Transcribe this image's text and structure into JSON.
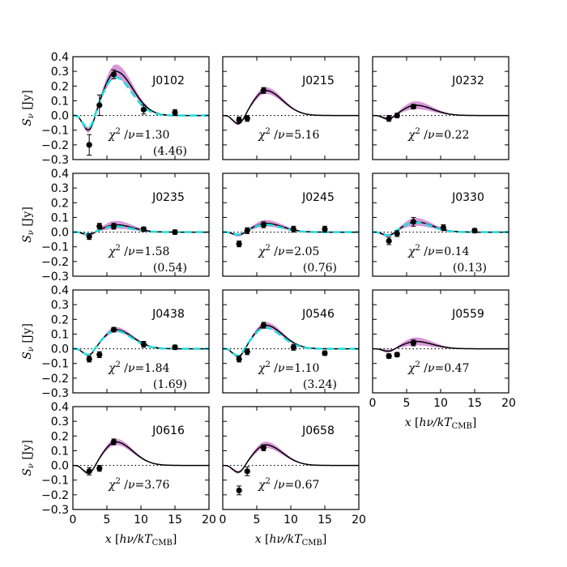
{
  "chart_data": {
    "type": "line",
    "description_axes": {
      "ylabel": "S_ν [Jy]",
      "xlabel": "x [hν/kT_CMB]",
      "xlim": [
        0,
        20
      ],
      "ylim": [
        -0.3,
        0.4
      ],
      "xticks": [
        0,
        5,
        10,
        15,
        20
      ],
      "xtick_labels": [
        "0",
        "5",
        "10",
        "15",
        "20"
      ],
      "yticks": [
        -0.3,
        -0.2,
        -0.1,
        0.0,
        0.1,
        0.2,
        0.3,
        0.4
      ],
      "ytick_labels": [
        "−0.3",
        "−0.2",
        "−0.1",
        "0.0",
        "0.1",
        "0.2",
        "0.3",
        "0.4"
      ]
    },
    "colors": {
      "model_line": "#000000",
      "band": "#cc77cc",
      "alt_model": "#22dddd",
      "points": "#000000"
    },
    "panels": [
      {
        "name": "J0102",
        "row": 0,
        "col": 0,
        "chi2": "1.30",
        "alt_chi2": "(4.46)",
        "points": [
          [
            2.4,
            -0.2,
            0.07
          ],
          [
            3.9,
            0.07,
            0.07
          ],
          [
            6.0,
            0.28,
            0.03
          ],
          [
            10.4,
            0.04,
            0.03
          ],
          [
            15.0,
            0.02,
            0.02
          ]
        ],
        "amp": 0.3,
        "band_frac": 0.15,
        "alt_scale": 0.87,
        "show_alt": true,
        "show_yticks": true,
        "show_xticks": false
      },
      {
        "name": "J0215",
        "row": 0,
        "col": 1,
        "chi2": "5.16",
        "alt_chi2": "",
        "points": [
          [
            2.4,
            -0.03,
            0.02
          ],
          [
            3.6,
            -0.02,
            0.02
          ],
          [
            6.0,
            0.17,
            0.02
          ]
        ],
        "amp": 0.17,
        "band_frac": 0.12,
        "alt_scale": 1.0,
        "show_alt": false,
        "show_yticks": false,
        "show_xticks": false
      },
      {
        "name": "J0232",
        "row": 0,
        "col": 2,
        "chi2": "0.22",
        "alt_chi2": "",
        "points": [
          [
            2.4,
            -0.02,
            0.02
          ],
          [
            3.6,
            0.0,
            0.015
          ],
          [
            6.0,
            0.06,
            0.015
          ]
        ],
        "amp": 0.07,
        "band_frac": 0.35,
        "alt_scale": 1.0,
        "show_alt": false,
        "show_yticks": false,
        "show_xticks": false
      },
      {
        "name": "J0235",
        "row": 1,
        "col": 0,
        "chi2": "1.58",
        "alt_chi2": "(0.54)",
        "points": [
          [
            2.4,
            -0.03,
            0.02
          ],
          [
            3.9,
            0.04,
            0.02
          ],
          [
            6.0,
            0.04,
            0.02
          ],
          [
            10.4,
            0.02,
            0.015
          ],
          [
            15.0,
            0.0,
            0.015
          ]
        ],
        "amp": 0.05,
        "band_frac": 0.5,
        "alt_scale": 0.8,
        "show_alt": true,
        "show_yticks": true,
        "show_xticks": false
      },
      {
        "name": "J0245",
        "row": 1,
        "col": 1,
        "chi2": "2.05",
        "alt_chi2": "(0.76)",
        "points": [
          [
            2.4,
            -0.08,
            0.02
          ],
          [
            3.6,
            0.01,
            0.02
          ],
          [
            6.0,
            0.05,
            0.02
          ],
          [
            10.4,
            0.02,
            0.02
          ],
          [
            15.0,
            0.02,
            0.02
          ]
        ],
        "amp": 0.06,
        "band_frac": 0.35,
        "alt_scale": 0.85,
        "show_alt": true,
        "show_yticks": false,
        "show_xticks": false
      },
      {
        "name": "J0330",
        "row": 1,
        "col": 2,
        "chi2": "0.14",
        "alt_chi2": "(0.13)",
        "points": [
          [
            2.4,
            -0.06,
            0.025
          ],
          [
            3.6,
            -0.01,
            0.02
          ],
          [
            6.0,
            0.07,
            0.03
          ],
          [
            10.4,
            0.03,
            0.02
          ],
          [
            15.0,
            0.01,
            0.015
          ]
        ],
        "amp": 0.07,
        "band_frac": 0.35,
        "alt_scale": 0.95,
        "show_alt": true,
        "show_yticks": false,
        "show_xticks": false
      },
      {
        "name": "J0438",
        "row": 2,
        "col": 0,
        "chi2": "1.84",
        "alt_chi2": "(1.69)",
        "points": [
          [
            2.4,
            -0.07,
            0.02
          ],
          [
            3.9,
            -0.04,
            0.02
          ],
          [
            6.0,
            0.13,
            0.015
          ],
          [
            10.4,
            0.03,
            0.02
          ],
          [
            15.0,
            0.01,
            0.015
          ]
        ],
        "amp": 0.13,
        "band_frac": 0.12,
        "alt_scale": 0.95,
        "show_alt": true,
        "show_yticks": true,
        "show_xticks": false
      },
      {
        "name": "J0546",
        "row": 2,
        "col": 1,
        "chi2": "1.10",
        "alt_chi2": "(3.24)",
        "points": [
          [
            2.4,
            -0.07,
            0.02
          ],
          [
            3.6,
            -0.02,
            0.02
          ],
          [
            6.0,
            0.16,
            0.02
          ],
          [
            10.4,
            0.01,
            0.02
          ],
          [
            15.0,
            -0.03,
            0.015
          ]
        ],
        "amp": 0.16,
        "band_frac": 0.12,
        "alt_scale": 0.9,
        "show_alt": true,
        "show_yticks": false,
        "show_xticks": false
      },
      {
        "name": "J0559",
        "row": 2,
        "col": 2,
        "chi2": "0.47",
        "alt_chi2": "",
        "points": [
          [
            2.4,
            -0.05,
            0.015
          ],
          [
            3.6,
            -0.04,
            0.015
          ],
          [
            6.0,
            0.04,
            0.02
          ]
        ],
        "amp": 0.05,
        "band_frac": 0.5,
        "alt_scale": 1.0,
        "show_alt": false,
        "show_yticks": false,
        "show_xticks": true
      },
      {
        "name": "J0616",
        "row": 3,
        "col": 0,
        "chi2": "3.76",
        "alt_chi2": "",
        "points": [
          [
            2.4,
            -0.04,
            0.025
          ],
          [
            3.9,
            -0.02,
            0.02
          ],
          [
            6.0,
            0.16,
            0.02
          ]
        ],
        "amp": 0.16,
        "band_frac": 0.12,
        "alt_scale": 1.0,
        "show_alt": false,
        "show_yticks": true,
        "show_xticks": true
      },
      {
        "name": "J0658",
        "row": 3,
        "col": 1,
        "chi2": "0.67",
        "alt_chi2": "",
        "points": [
          [
            2.4,
            -0.17,
            0.03
          ],
          [
            3.6,
            -0.04,
            0.03
          ],
          [
            6.0,
            0.12,
            0.02
          ]
        ],
        "amp": 0.14,
        "band_frac": 0.14,
        "alt_scale": 1.0,
        "show_alt": false,
        "show_yticks": false,
        "show_xticks": true
      }
    ]
  }
}
